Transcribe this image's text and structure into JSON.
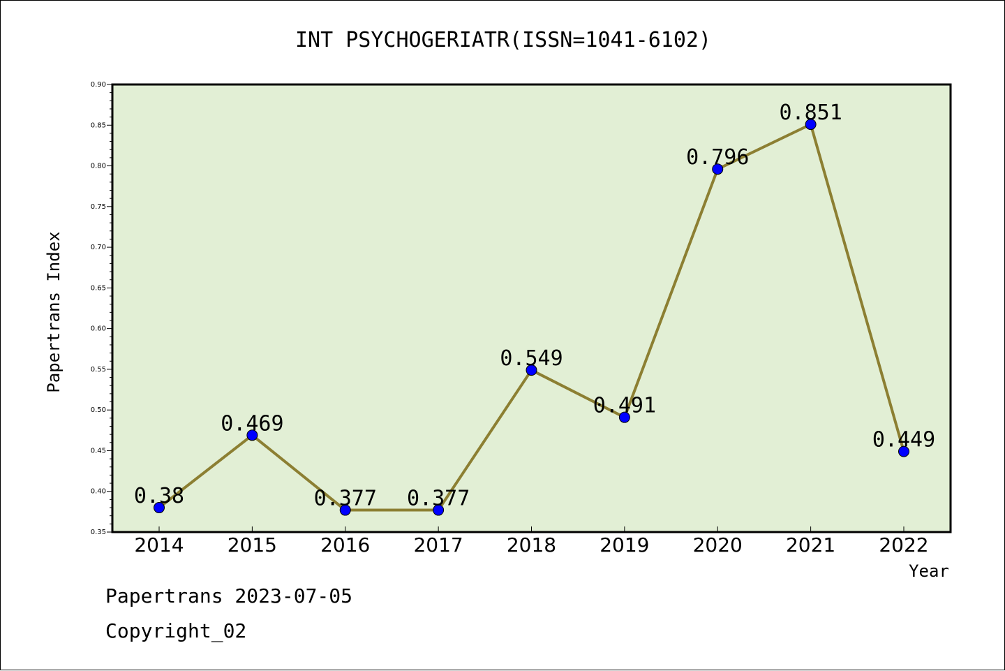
{
  "chart_data": {
    "type": "line",
    "title": "INT PSYCHOGERIATR(ISSN=1041-6102)",
    "xlabel": "Year",
    "ylabel": "Papertrans Index",
    "categories": [
      "2014",
      "2015",
      "2016",
      "2017",
      "2018",
      "2019",
      "2020",
      "2021",
      "2022"
    ],
    "values": [
      0.38,
      0.469,
      0.377,
      0.377,
      0.549,
      0.491,
      0.796,
      0.851,
      0.449
    ],
    "data_labels": [
      "0.38",
      "0.469",
      "0.377",
      "0.377",
      "0.549",
      "0.491",
      "0.796",
      "0.851",
      "0.449"
    ],
    "ylim": [
      0.35,
      0.9
    ],
    "yticks": [
      "0.35",
      "0.40",
      "0.45",
      "0.50",
      "0.55",
      "0.60",
      "0.65",
      "0.70",
      "0.75",
      "0.80",
      "0.85",
      "0.90"
    ],
    "grid": false,
    "legend": "none",
    "colors": {
      "plot_background": "#e2efd5",
      "line": "#8c7f32",
      "marker": "#0000ff"
    }
  },
  "footer": {
    "date_line": "Papertrans 2023-07-05",
    "copyright": "Copyright_02"
  }
}
